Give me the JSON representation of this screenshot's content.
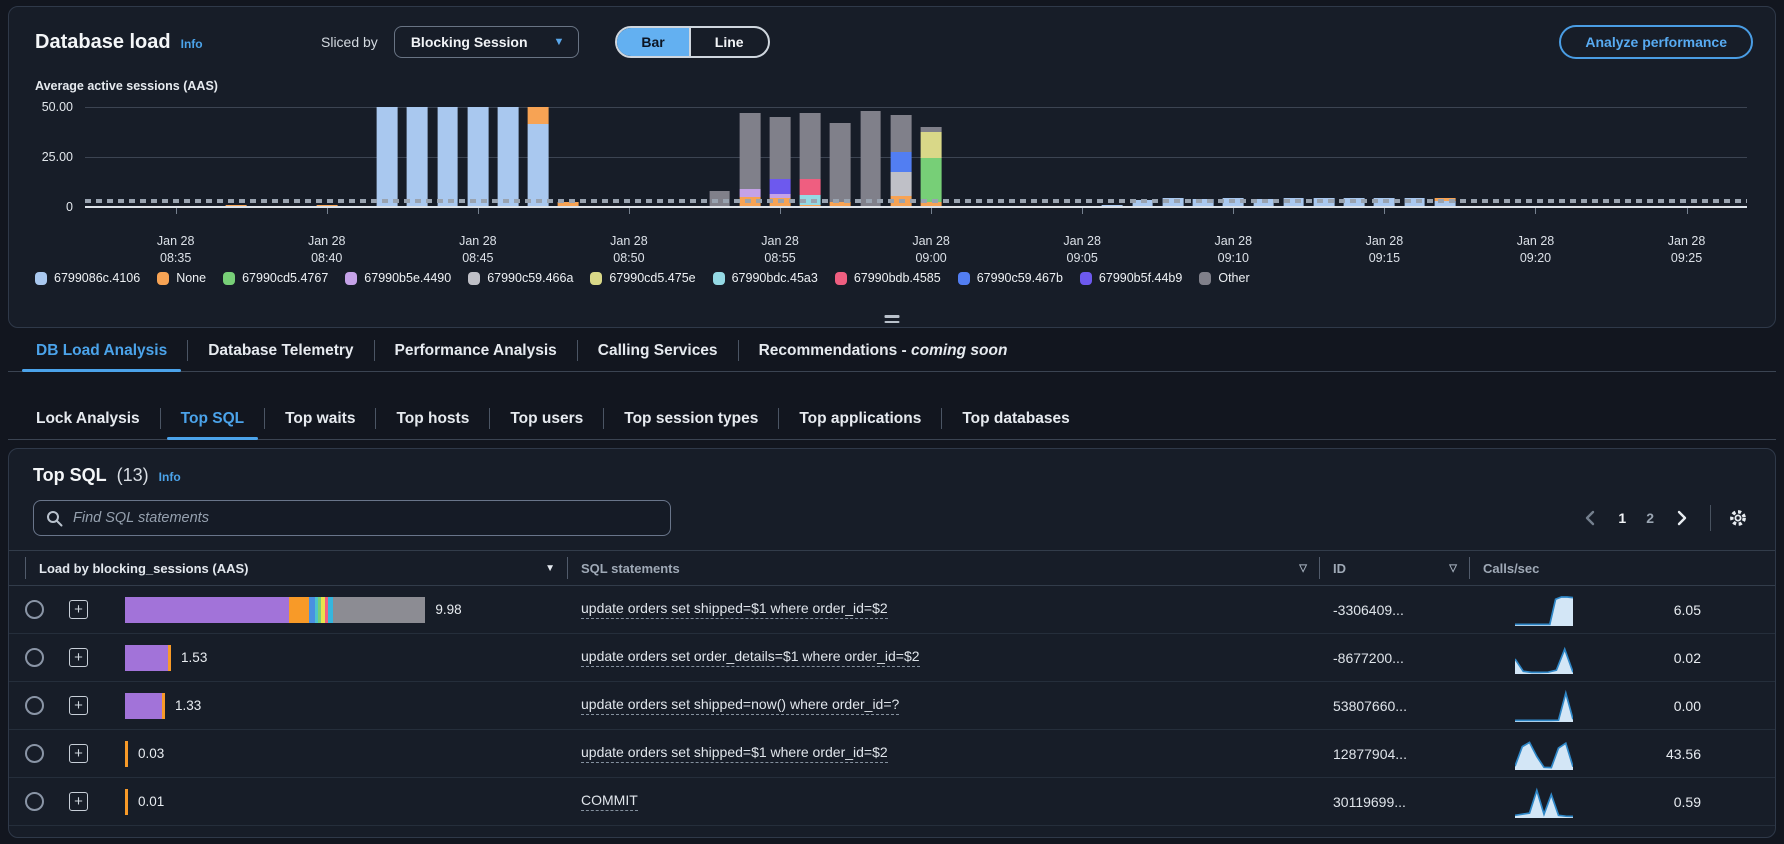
{
  "header": {
    "title": "Database load",
    "info_label": "Info",
    "sliced_by_label": "Sliced by",
    "slice_value": "Blocking Session",
    "view_toggle": {
      "options": [
        "Bar",
        "Line"
      ],
      "selected": "Bar"
    },
    "analyze_button_label": "Analyze performance"
  },
  "chart_data": {
    "type": "stacked-bar",
    "title": "Average active sessions (AAS)",
    "ylim": [
      0,
      50
    ],
    "yticks": [
      {
        "v": 50,
        "label": "50.00"
      },
      {
        "v": 25,
        "label": "25.00"
      },
      {
        "v": 0,
        "label": "0"
      }
    ],
    "max_vcpus_line_value": 2,
    "x_window": {
      "start": "08:32",
      "end": "09:27"
    },
    "x_date_label": "Jan 28",
    "xticks": [
      "08:35",
      "08:40",
      "08:45",
      "08:50",
      "08:55",
      "09:00",
      "09:05",
      "09:10",
      "09:15",
      "09:20",
      "09:25"
    ],
    "legend_position": "bottom",
    "legend": [
      {
        "label": "6799086c.4106",
        "color": "#a9c8ef"
      },
      {
        "label": "None",
        "color": "#f7a354"
      },
      {
        "label": "67990cd5.4767",
        "color": "#77cf77"
      },
      {
        "label": "67990b5e.4490",
        "color": "#c5a2e8"
      },
      {
        "label": "67990c59.466a",
        "color": "#bfc0c7"
      },
      {
        "label": "67990cd5.475e",
        "color": "#d9d888"
      },
      {
        "label": "67990bdc.45a3",
        "color": "#94d9e4"
      },
      {
        "label": "67990bdb.4585",
        "color": "#ef5e80"
      },
      {
        "label": "67990c59.467b",
        "color": "#527ef2"
      },
      {
        "label": "67990b5f.44b9",
        "color": "#6d59ee"
      },
      {
        "label": "Other",
        "color": "#80808a"
      }
    ],
    "bars": [
      {
        "t": "08:36",
        "stack": {
          "None": 0.4
        }
      },
      {
        "t": "08:37",
        "stack": {
          "None": 0.8
        }
      },
      {
        "t": "08:38",
        "stack": {
          "None": 0.5
        }
      },
      {
        "t": "08:39",
        "stack": {
          "None": 0.3
        }
      },
      {
        "t": "08:40",
        "stack": {
          "None": 0.9
        }
      },
      {
        "t": "08:42",
        "stack": {
          "6799086c.4106": 50
        }
      },
      {
        "t": "08:43",
        "stack": {
          "6799086c.4106": 50
        }
      },
      {
        "t": "08:44",
        "stack": {
          "6799086c.4106": 50
        }
      },
      {
        "t": "08:45",
        "stack": {
          "6799086c.4106": 50
        }
      },
      {
        "t": "08:46",
        "stack": {
          "6799086c.4106": 50
        }
      },
      {
        "t": "08:47",
        "stack": {
          "6799086c.4106": 41.5,
          "None": 8.5
        }
      },
      {
        "t": "08:48",
        "stack": {
          "None": 2.6
        }
      },
      {
        "t": "08:49",
        "stack": {
          "None": 0.6
        }
      },
      {
        "t": "08:50",
        "stack": {
          "None": 0.4
        }
      },
      {
        "t": "08:51",
        "stack": {
          "None": 0.3
        }
      },
      {
        "t": "08:53",
        "stack": {
          "Other": 8
        }
      },
      {
        "t": "08:54",
        "stack": {
          "None": 5,
          "67990b5e.4490": 4,
          "Other": 38
        }
      },
      {
        "t": "08:55",
        "stack": {
          "None": 4.5,
          "67990b5e.4490": 2,
          "67990b5f.44b9": 7.5,
          "Other": 31
        }
      },
      {
        "t": "08:56",
        "stack": {
          "None": 1,
          "67990bdc.45a3": 5,
          "67990bdb.4585": 8,
          "Other": 33
        }
      },
      {
        "t": "08:57",
        "stack": {
          "None": 2.5,
          "Other": 39.5
        }
      },
      {
        "t": "08:58",
        "stack": {
          "Other": 48
        }
      },
      {
        "t": "08:59",
        "stack": {
          "None": 5.5,
          "67990c59.466a": 12,
          "67990c59.467b": 10,
          "Other": 18.5
        }
      },
      {
        "t": "09:00",
        "stack": {
          "None": 2.5,
          "67990cd5.4767": 22,
          "67990cd5.475e": 13,
          "Other": 2.5
        }
      },
      {
        "t": "09:05",
        "stack": {
          "6799086c.4106": 0.6
        }
      },
      {
        "t": "09:06",
        "stack": {
          "6799086c.4106": 1.2
        }
      },
      {
        "t": "09:07",
        "stack": {
          "6799086c.4106": 3.4
        }
      },
      {
        "t": "09:08",
        "stack": {
          "6799086c.4106": 4.4
        }
      },
      {
        "t": "09:09",
        "stack": {
          "6799086c.4106": 4.1
        }
      },
      {
        "t": "09:10",
        "stack": {
          "6799086c.4106": 4.5
        }
      },
      {
        "t": "09:11",
        "stack": {
          "6799086c.4106": 4.2
        }
      },
      {
        "t": "09:12",
        "stack": {
          "6799086c.4106": 4.6
        }
      },
      {
        "t": "09:13",
        "stack": {
          "6799086c.4106": 4.3
        }
      },
      {
        "t": "09:14",
        "stack": {
          "6799086c.4106": 4.7
        }
      },
      {
        "t": "09:15",
        "stack": {
          "6799086c.4106": 4.4
        }
      },
      {
        "t": "09:16",
        "stack": {
          "6799086c.4106": 4.6
        }
      },
      {
        "t": "09:17",
        "stack": {
          "6799086c.4106": 3.2,
          "None": 1.3
        }
      }
    ]
  },
  "main_tabs": [
    {
      "label": "DB Load Analysis",
      "active": true
    },
    {
      "label": "Database Telemetry"
    },
    {
      "label": "Performance Analysis"
    },
    {
      "label": "Calling Services"
    },
    {
      "label": "Recommendations -",
      "italic_suffix": "coming soon"
    }
  ],
  "sub_tabs": [
    {
      "label": "Lock Analysis"
    },
    {
      "label": "Top SQL",
      "active": true
    },
    {
      "label": "Top waits"
    },
    {
      "label": "Top hosts"
    },
    {
      "label": "Top users"
    },
    {
      "label": "Top session types"
    },
    {
      "label": "Top applications"
    },
    {
      "label": "Top databases"
    }
  ],
  "top_sql": {
    "title": "Top SQL",
    "count": "(13)",
    "info_label": "Info",
    "search_placeholder": "Find SQL statements",
    "pagination": {
      "pages": [
        "1",
        "2"
      ],
      "current": "1"
    },
    "columns": [
      {
        "label": "Load by blocking_sessions (AAS)",
        "icon": "sort-desc"
      },
      {
        "label": "SQL statements",
        "icon": "filter"
      },
      {
        "label": "ID",
        "icon": "filter"
      },
      {
        "label": "Calls/sec"
      }
    ],
    "rows": [
      {
        "load": "9.98",
        "load_value": 9.98,
        "load_segments": [
          [
            "#a273d9",
            0.545
          ],
          [
            "#f89a28",
            0.068
          ],
          [
            "#4a90e2",
            0.018
          ],
          [
            "#4dc3ce",
            0.012
          ],
          [
            "#77cf77",
            0.01
          ],
          [
            "#e8e34d",
            0.012
          ],
          [
            "#ef5e80",
            0.012
          ],
          [
            "#35b6de",
            0.015
          ],
          [
            "#8c8c93",
            0.308
          ]
        ],
        "sql": "update orders set shipped=$1 where order_id=$2",
        "id": "-3306409...",
        "calls_per_sec": "6.05",
        "spark": [
          0.02,
          0.02,
          0.02,
          0.02,
          0.02,
          0.02,
          0.02,
          0.92,
          1,
          1,
          0.98
        ]
      },
      {
        "load": "1.53",
        "load_value": 1.53,
        "load_segments": [
          [
            "#a273d9",
            0.93
          ],
          [
            "#f89a28",
            0.07
          ]
        ],
        "sql": "update orders set order_details=$1 where order_id=$2",
        "id": "-8677200...",
        "calls_per_sec": "0.02",
        "spark": [
          0.5,
          0.06,
          0.02,
          0.02,
          0.03,
          0.1,
          0.85,
          0.03
        ]
      },
      {
        "load": "1.33",
        "load_value": 1.33,
        "load_segments": [
          [
            "#a273d9",
            0.93
          ],
          [
            "#f89a28",
            0.07
          ]
        ],
        "sql": "update orders set shipped=now() where order_id=?",
        "id": "53807660...",
        "calls_per_sec": "0.00",
        "spark": [
          0.02,
          0.02,
          0.02,
          0.02,
          0.02,
          0.02,
          0.03,
          1,
          0.06
        ]
      },
      {
        "load": "0.03",
        "load_value": 0.03,
        "load_segments": [
          [
            "#f89a28",
            1
          ]
        ],
        "sql": "update orders set shipped=$1 where order_id=$2",
        "id": "12877904...",
        "calls_per_sec": "43.56",
        "spark": [
          0.1,
          0.8,
          0.95,
          0.45,
          0.06,
          0.05,
          0.75,
          0.92,
          0.08
        ]
      },
      {
        "load": "0.01",
        "load_value": 0.01,
        "load_segments": [
          [
            "#f89a28",
            1
          ]
        ],
        "sql": "COMMIT",
        "id": "30119699...",
        "calls_per_sec": "0.59",
        "spark": [
          0.06,
          0.1,
          0.14,
          0.95,
          0.1,
          0.8,
          0.06,
          0.03,
          0.02
        ]
      }
    ]
  }
}
